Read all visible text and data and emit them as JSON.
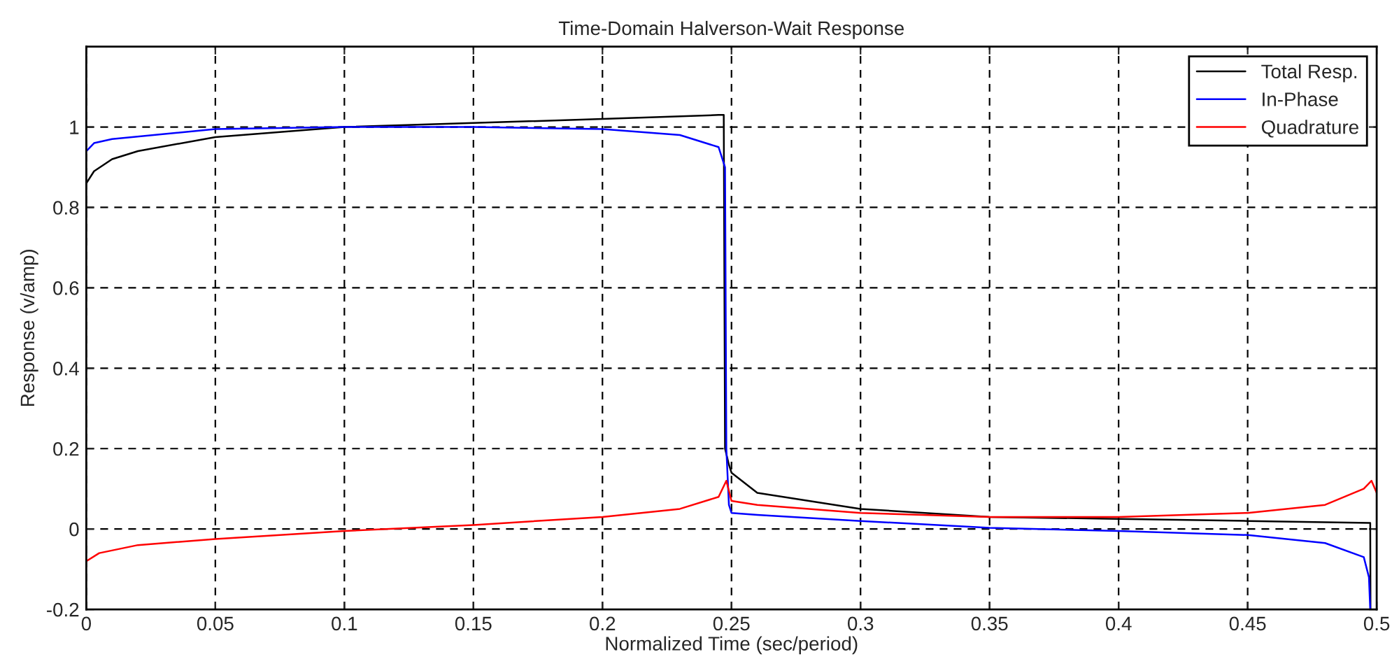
{
  "chart_data": {
    "type": "line",
    "title": "Time-Domain Halverson-Wait Response",
    "xlabel": "Normalized Time (sec/period)",
    "ylabel": "Response (v/amp)",
    "xlim": [
      0,
      0.5
    ],
    "ylim": [
      -0.2,
      1.2
    ],
    "xticks": [
      0,
      0.05,
      0.1,
      0.15,
      0.2,
      0.25,
      0.3,
      0.35,
      0.4,
      0.45,
      0.5
    ],
    "yticks": [
      -0.2,
      0,
      0.2,
      0.4,
      0.6,
      0.8,
      1
    ],
    "grid": true,
    "legend": "top right",
    "line_style": "solid",
    "series": [
      {
        "name": "Total Resp.",
        "color": "#000000",
        "x": [
          0,
          0.003,
          0.01,
          0.02,
          0.05,
          0.1,
          0.15,
          0.2,
          0.245,
          0.247,
          0.2475,
          0.249,
          0.25,
          0.26,
          0.3,
          0.35,
          0.4,
          0.45,
          0.4975,
          0.4976
        ],
        "values": [
          0.86,
          0.89,
          0.92,
          0.94,
          0.975,
          1.0,
          1.01,
          1.02,
          1.03,
          1.03,
          0.2,
          0.16,
          0.14,
          0.09,
          0.05,
          0.03,
          0.025,
          0.02,
          0.015,
          -0.2
        ]
      },
      {
        "name": "In-Phase",
        "color": "#0000ff",
        "x": [
          0,
          0.003,
          0.01,
          0.05,
          0.1,
          0.15,
          0.2,
          0.23,
          0.245,
          0.2475,
          0.248,
          0.249,
          0.25,
          0.26,
          0.3,
          0.35,
          0.4,
          0.45,
          0.48,
          0.495,
          0.497,
          0.4975
        ],
        "values": [
          0.94,
          0.96,
          0.97,
          0.995,
          1.0,
          1.0,
          0.995,
          0.98,
          0.95,
          0.9,
          0.2,
          0.06,
          0.04,
          0.035,
          0.02,
          0.003,
          -0.005,
          -0.015,
          -0.035,
          -0.07,
          -0.12,
          -0.2
        ]
      },
      {
        "name": "Quadrature",
        "color": "#ff0000",
        "x": [
          0,
          0.005,
          0.02,
          0.05,
          0.1,
          0.15,
          0.2,
          0.23,
          0.245,
          0.248,
          0.25,
          0.26,
          0.3,
          0.35,
          0.4,
          0.45,
          0.48,
          0.495,
          0.498,
          0.5
        ],
        "values": [
          -0.08,
          -0.06,
          -0.04,
          -0.025,
          -0.005,
          0.01,
          0.03,
          0.05,
          0.08,
          0.12,
          0.07,
          0.06,
          0.04,
          0.03,
          0.03,
          0.04,
          0.06,
          0.1,
          0.12,
          0.09
        ]
      }
    ]
  }
}
